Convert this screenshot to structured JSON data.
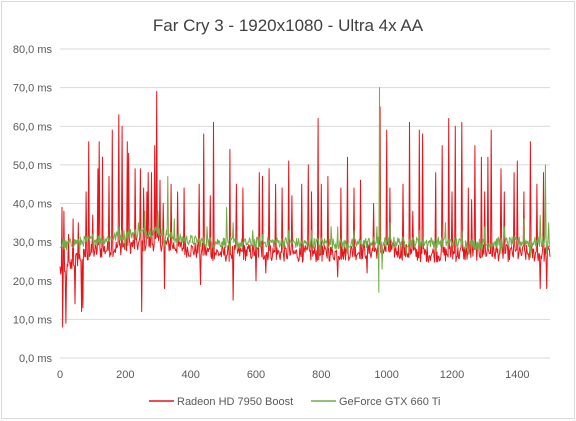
{
  "chart_data": {
    "type": "line",
    "title": "Far Cry 3 - 1920x1080 - Ultra 4x AA",
    "xlabel": "",
    "ylabel": "",
    "xlim": [
      0,
      1500
    ],
    "ylim": [
      0,
      80
    ],
    "grid": "horizontal",
    "legend_position": "bottom",
    "x_ticks": [
      "0",
      "200",
      "400",
      "600",
      "800",
      "1000",
      "1200",
      "1400"
    ],
    "x_tick_values": [
      0,
      200,
      400,
      600,
      800,
      1000,
      1200,
      1400
    ],
    "y_ticks": [
      "0,0 ms",
      "10,0 ms",
      "20,0 ms",
      "30,0 ms",
      "40,0 ms",
      "50,0 ms",
      "60,0 ms",
      "70,0 ms",
      "80,0 ms"
    ],
    "y_tick_values": [
      0,
      10,
      20,
      30,
      40,
      50,
      60,
      70,
      80
    ],
    "series": [
      {
        "name": "Radeon HD 7950 Boost",
        "color": "#e8141a",
        "baseline": [
          [
            0,
            23
          ],
          [
            10,
            21
          ],
          [
            40,
            25
          ],
          [
            100,
            27.5
          ],
          [
            200,
            29
          ],
          [
            300,
            30
          ],
          [
            400,
            28
          ],
          [
            500,
            27
          ],
          [
            600,
            27.5
          ],
          [
            700,
            27
          ],
          [
            800,
            27
          ],
          [
            900,
            27.5
          ],
          [
            1000,
            28
          ],
          [
            1100,
            27
          ],
          [
            1200,
            27
          ],
          [
            1300,
            27.5
          ],
          [
            1400,
            27
          ],
          [
            1500,
            27
          ]
        ],
        "spikes": [
          [
            5,
            39
          ],
          [
            7,
            8
          ],
          [
            12,
            38
          ],
          [
            18,
            9
          ],
          [
            25,
            32
          ],
          [
            40,
            36
          ],
          [
            45,
            14
          ],
          [
            55,
            35
          ],
          [
            65,
            12
          ],
          [
            80,
            43
          ],
          [
            88,
            56
          ],
          [
            100,
            37
          ],
          [
            115,
            49
          ],
          [
            120,
            56
          ],
          [
            130,
            52
          ],
          [
            150,
            47
          ],
          [
            160,
            59
          ],
          [
            180,
            63
          ],
          [
            190,
            60
          ],
          [
            205,
            56
          ],
          [
            210,
            53
          ],
          [
            230,
            49
          ],
          [
            245,
            49
          ],
          [
            255,
            44
          ],
          [
            265,
            43
          ],
          [
            270,
            48
          ],
          [
            280,
            48
          ],
          [
            290,
            55
          ],
          [
            295,
            69
          ],
          [
            305,
            46
          ],
          [
            315,
            40
          ],
          [
            340,
            45
          ],
          [
            360,
            43
          ],
          [
            380,
            44
          ],
          [
            425,
            45
          ],
          [
            440,
            58
          ],
          [
            460,
            42
          ],
          [
            470,
            61
          ],
          [
            520,
            54
          ],
          [
            540,
            45
          ],
          [
            560,
            44
          ],
          [
            610,
            48
          ],
          [
            620,
            47
          ],
          [
            640,
            49
          ],
          [
            660,
            45
          ],
          [
            680,
            44
          ],
          [
            700,
            51
          ],
          [
            710,
            42
          ],
          [
            740,
            45
          ],
          [
            760,
            50
          ],
          [
            770,
            43
          ],
          [
            790,
            62
          ],
          [
            800,
            45
          ],
          [
            820,
            47
          ],
          [
            860,
            44
          ],
          [
            880,
            52
          ],
          [
            900,
            44
          ],
          [
            920,
            46
          ],
          [
            960,
            40
          ],
          [
            980,
            65
          ],
          [
            1000,
            59
          ],
          [
            1010,
            44
          ],
          [
            1050,
            45
          ],
          [
            1070,
            61
          ],
          [
            1080,
            38
          ],
          [
            1100,
            59
          ],
          [
            1110,
            58
          ],
          [
            1150,
            48
          ],
          [
            1170,
            55
          ],
          [
            1190,
            62
          ],
          [
            1200,
            43
          ],
          [
            1210,
            60
          ],
          [
            1230,
            61
          ],
          [
            1250,
            44
          ],
          [
            1260,
            41
          ],
          [
            1270,
            55
          ],
          [
            1290,
            52
          ],
          [
            1300,
            43
          ],
          [
            1310,
            52
          ],
          [
            1320,
            59
          ],
          [
            1350,
            49
          ],
          [
            1360,
            43
          ],
          [
            1390,
            48
          ],
          [
            1400,
            51
          ],
          [
            1420,
            43
          ],
          [
            1440,
            56
          ],
          [
            1460,
            45
          ],
          [
            1480,
            48
          ]
        ],
        "dips": [
          [
            40,
            15
          ],
          [
            70,
            13
          ],
          [
            100,
            14
          ],
          [
            130,
            13
          ],
          [
            150,
            17
          ],
          [
            180,
            15
          ],
          [
            210,
            17
          ],
          [
            250,
            12
          ],
          [
            290,
            12
          ],
          [
            320,
            18
          ],
          [
            340,
            16
          ],
          [
            360,
            18
          ],
          [
            430,
            19
          ],
          [
            470,
            18
          ],
          [
            520,
            21
          ],
          [
            530,
            15
          ],
          [
            600,
            20
          ],
          [
            630,
            22
          ],
          [
            660,
            20
          ],
          [
            700,
            17
          ],
          [
            760,
            22
          ],
          [
            800,
            19
          ],
          [
            850,
            21
          ],
          [
            900,
            21
          ],
          [
            940,
            22
          ],
          [
            980,
            18
          ],
          [
            1000,
            20
          ],
          [
            1050,
            20
          ],
          [
            1080,
            20
          ],
          [
            1100,
            21
          ],
          [
            1150,
            20
          ],
          [
            1200,
            18
          ],
          [
            1250,
            18
          ],
          [
            1290,
            20
          ],
          [
            1320,
            21
          ],
          [
            1360,
            20
          ],
          [
            1400,
            18
          ],
          [
            1440,
            15
          ],
          [
            1470,
            18
          ],
          [
            1490,
            18
          ]
        ]
      },
      {
        "name": "GeForce GTX 660 Ti",
        "color": "#70ad47",
        "baseline": [
          [
            0,
            29
          ],
          [
            50,
            30
          ],
          [
            100,
            30.5
          ],
          [
            150,
            31
          ],
          [
            200,
            32
          ],
          [
            250,
            32.5
          ],
          [
            300,
            33
          ],
          [
            350,
            31
          ],
          [
            400,
            30.5
          ],
          [
            450,
            30
          ],
          [
            500,
            30
          ],
          [
            550,
            29.5
          ],
          [
            600,
            30
          ],
          [
            650,
            30
          ],
          [
            700,
            30
          ],
          [
            750,
            29.5
          ],
          [
            800,
            30
          ],
          [
            850,
            29.5
          ],
          [
            900,
            29.5
          ],
          [
            950,
            30
          ],
          [
            1000,
            30
          ],
          [
            1050,
            30
          ],
          [
            1100,
            30
          ],
          [
            1150,
            30
          ],
          [
            1200,
            30
          ],
          [
            1250,
            29.5
          ],
          [
            1300,
            29.5
          ],
          [
            1350,
            30
          ],
          [
            1400,
            30
          ],
          [
            1450,
            30
          ],
          [
            1500,
            30
          ]
        ],
        "spikes": [
          [
            10,
            31
          ],
          [
            100,
            32
          ],
          [
            180,
            34
          ],
          [
            240,
            35
          ],
          [
            260,
            38
          ],
          [
            300,
            38
          ],
          [
            330,
            47
          ],
          [
            350,
            36
          ],
          [
            450,
            34
          ],
          [
            510,
            39
          ],
          [
            530,
            35
          ],
          [
            590,
            33
          ],
          [
            620,
            32
          ],
          [
            700,
            33
          ],
          [
            770,
            33
          ],
          [
            830,
            34
          ],
          [
            850,
            34
          ],
          [
            900,
            33
          ],
          [
            970,
            34
          ],
          [
            978,
            70
          ],
          [
            1010,
            35
          ],
          [
            1100,
            33
          ],
          [
            1180,
            35
          ],
          [
            1230,
            33
          ],
          [
            1300,
            34
          ],
          [
            1360,
            34
          ],
          [
            1420,
            36
          ],
          [
            1470,
            37
          ],
          [
            1485,
            50
          ],
          [
            1495,
            35
          ]
        ],
        "dips": [
          [
            20,
            28
          ],
          [
            60,
            27
          ],
          [
            200,
            28
          ],
          [
            320,
            29
          ],
          [
            520,
            27
          ],
          [
            600,
            28
          ],
          [
            700,
            27
          ],
          [
            795,
            27
          ],
          [
            880,
            27
          ],
          [
            975,
            17
          ],
          [
            985,
            23
          ],
          [
            1060,
            27
          ],
          [
            1150,
            27
          ],
          [
            1250,
            27
          ],
          [
            1350,
            27
          ],
          [
            1440,
            26
          ],
          [
            1490,
            27
          ]
        ]
      }
    ]
  }
}
